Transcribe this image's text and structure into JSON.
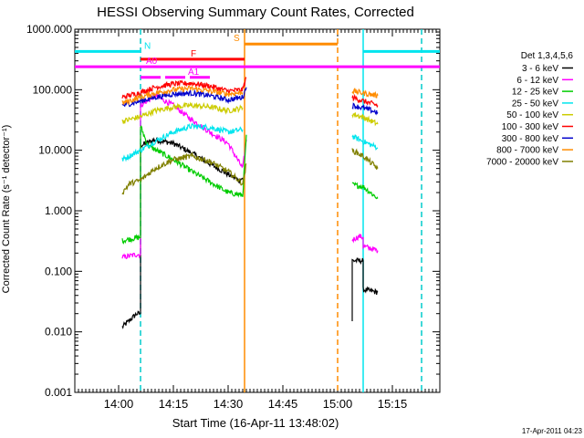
{
  "chart_data": {
    "type": "line",
    "title": "HESSI Observing Summary Count Rates, Corrected",
    "xlabel": "Start Time (16-Apr-11 13:48:02)",
    "ylabel": "Corrected Count Rate (s⁻¹ detector⁻¹)",
    "timestamp": "17-Apr-2011 04:23",
    "legend_title": "Det 1,3,4,5,6",
    "legend_placement": "right",
    "x_unit": "minutes",
    "xlim": [
      "13:48",
      "15:28"
    ],
    "ylog": true,
    "ylim": [
      0.001,
      1000
    ],
    "x_ticks": [
      "14:00",
      "14:15",
      "14:30",
      "14:45",
      "15:00",
      "15:15"
    ],
    "x_tick_values": [
      "14:00",
      "14:15",
      "14:30",
      "14:45",
      "15:00",
      "15:15"
    ],
    "y_tick_labels": [
      "1000.000",
      "100.000",
      "10.000",
      "1.000",
      "0.100",
      "0.010",
      "0.001"
    ],
    "y_tick_values": [
      1000,
      100,
      10,
      1,
      0.1,
      0.01,
      0.001
    ],
    "series": [
      {
        "name": "3 - 6 keV",
        "color": "#000000",
        "segments": [
          [
            [
              "14:01",
              0.012
            ],
            [
              "14:05",
              0.02
            ],
            [
              "14:06",
              0.02
            ],
            [
              "14:06",
              12
            ],
            [
              "14:10",
              15
            ],
            [
              "14:15",
              13
            ],
            [
              "14:20",
              9
            ],
            [
              "14:25",
              6
            ],
            [
              "14:30",
              4
            ],
            [
              "14:33",
              3.2
            ],
            [
              "14:34",
              3.5
            ]
          ],
          [
            [
              "15:04",
              0.015
            ],
            [
              "15:04",
              0.15
            ],
            [
              "15:07",
              0.15
            ],
            [
              "15:07",
              0.05
            ],
            [
              "15:11",
              0.045
            ]
          ]
        ]
      },
      {
        "name": "6 - 12 keV",
        "color": "#ff00ff",
        "segments": [
          [
            [
              "14:01",
              0.17
            ],
            [
              "14:05",
              0.19
            ],
            [
              "14:06",
              0.19
            ],
            [
              "14:06",
              55
            ],
            [
              "14:10",
              80
            ],
            [
              "14:15",
              55
            ],
            [
              "14:20",
              32
            ],
            [
              "14:25",
              20
            ],
            [
              "14:30",
              13
            ],
            [
              "14:34",
              5
            ],
            [
              "14:35",
              15
            ]
          ],
          [
            [
              "15:04",
              0.33
            ],
            [
              "15:06",
              0.38
            ],
            [
              "15:07",
              0.36
            ],
            [
              "15:07",
              0.26
            ],
            [
              "15:11",
              0.22
            ]
          ]
        ]
      },
      {
        "name": "12 - 25 keV",
        "color": "#00cc00",
        "segments": [
          [
            [
              "14:01",
              0.32
            ],
            [
              "14:05",
              0.36
            ],
            [
              "14:06",
              0.36
            ],
            [
              "14:06",
              25
            ],
            [
              "14:08",
              12
            ],
            [
              "14:15",
              7
            ],
            [
              "14:20",
              4.5
            ],
            [
              "14:25",
              3
            ],
            [
              "14:30",
              2
            ],
            [
              "14:34",
              1.8
            ],
            [
              "14:35",
              18
            ]
          ],
          [
            [
              "15:04",
              2.7
            ],
            [
              "15:07",
              2.5
            ],
            [
              "15:11",
              1.6
            ]
          ]
        ]
      },
      {
        "name": "25 - 50 keV",
        "color": "#00e5ee",
        "segments": [
          [
            [
              "14:01",
              7
            ],
            [
              "14:06",
              10
            ],
            [
              "14:10",
              14
            ],
            [
              "14:15",
              20
            ],
            [
              "14:20",
              25
            ],
            [
              "14:25",
              24
            ],
            [
              "14:30",
              20
            ],
            [
              "14:34",
              22
            ]
          ],
          [
            [
              "15:04",
              17
            ],
            [
              "15:07",
              14
            ],
            [
              "15:11",
              11
            ]
          ]
        ]
      },
      {
        "name": "50 - 100 keV",
        "color": "#cccc00",
        "segments": [
          [
            [
              "14:01",
              30
            ],
            [
              "14:06",
              36
            ],
            [
              "14:10",
              45
            ],
            [
              "14:15",
              52
            ],
            [
              "14:20",
              55
            ],
            [
              "14:25",
              52
            ],
            [
              "14:30",
              45
            ],
            [
              "14:34",
              50
            ]
          ],
          [
            [
              "15:04",
              40
            ],
            [
              "15:07",
              35
            ],
            [
              "15:11",
              27
            ]
          ]
        ]
      },
      {
        "name": "100 - 300 keV",
        "color": "#ff0000",
        "segments": [
          [
            [
              "14:01",
              75
            ],
            [
              "14:06",
              90
            ],
            [
              "14:10",
              110
            ],
            [
              "14:15",
              125
            ],
            [
              "14:20",
              128
            ],
            [
              "14:25",
              115
            ],
            [
              "14:30",
              95
            ],
            [
              "14:34",
              100
            ],
            [
              "14:35",
              160
            ]
          ],
          [
            [
              "15:04",
              75
            ],
            [
              "15:07",
              65
            ],
            [
              "15:11",
              55
            ]
          ]
        ]
      },
      {
        "name": "300 - 800 keV",
        "color": "#0000cc",
        "segments": [
          [
            [
              "14:01",
              55
            ],
            [
              "14:06",
              65
            ],
            [
              "14:10",
              75
            ],
            [
              "14:15",
              85
            ],
            [
              "14:20",
              88
            ],
            [
              "14:25",
              80
            ],
            [
              "14:30",
              68
            ],
            [
              "14:34",
              75
            ],
            [
              "14:35",
              110
            ]
          ],
          [
            [
              "15:04",
              55
            ],
            [
              "15:07",
              50
            ],
            [
              "15:11",
              42
            ]
          ]
        ]
      },
      {
        "name": "800 - 7000 keV",
        "color": "#ff8c00",
        "segments": [
          [
            [
              "14:01",
              60
            ],
            [
              "14:06",
              75
            ],
            [
              "14:10",
              88
            ],
            [
              "14:15",
              100
            ],
            [
              "14:20",
              105
            ],
            [
              "14:25",
              95
            ],
            [
              "14:30",
              85
            ],
            [
              "14:34",
              90
            ]
          ],
          [
            [
              "15:04",
              95
            ],
            [
              "15:07",
              88
            ],
            [
              "15:11",
              80
            ]
          ]
        ]
      },
      {
        "name": "7000 - 20000 keV",
        "color": "#808000",
        "segments": [
          [
            [
              "14:01",
              2
            ],
            [
              "14:03",
              2.8
            ],
            [
              "14:06",
              3.2
            ],
            [
              "14:10",
              5
            ],
            [
              "14:15",
              7
            ],
            [
              "14:20",
              8
            ],
            [
              "14:25",
              6.5
            ],
            [
              "14:30",
              4.5
            ],
            [
              "14:34",
              2.8
            ],
            [
              "14:35",
              6
            ]
          ],
          [
            [
              "15:04",
              10
            ],
            [
              "15:07",
              8
            ],
            [
              "15:11",
              5
            ]
          ]
        ]
      }
    ],
    "vlines": [
      {
        "x": "14:06",
        "color": "#00cccc",
        "style": "dashed"
      },
      {
        "x": "14:34.5",
        "color": "#ff8c00",
        "style": "solid"
      },
      {
        "x": "15:00",
        "color": "#ff8c00",
        "style": "dashed"
      },
      {
        "x": "15:07",
        "color": "#00e5ee",
        "style": "solid"
      },
      {
        "x": "15:23",
        "color": "#00cccc",
        "style": "dashed"
      }
    ],
    "flag_bars": [
      {
        "label": "N",
        "color": "#00e5ee",
        "y": 430,
        "segments": [
          [
            "13:48",
            "14:06"
          ],
          [
            "15:07",
            "15:28"
          ]
        ]
      },
      {
        "label": "S",
        "color": "#ff8c00",
        "y": 570,
        "segments": [
          [
            "14:34.5",
            "15:00"
          ]
        ]
      },
      {
        "label": "F",
        "color": "#ff0000",
        "y": 320,
        "segments": [
          [
            "14:06",
            "14:34.5"
          ]
        ]
      },
      {
        "label": "A0",
        "color": "#ff00ff",
        "y": 240,
        "segments": [
          [
            "13:48",
            "15:28"
          ]
        ]
      },
      {
        "label": "A1",
        "color": "#ff00ff",
        "y": 160,
        "segments": [
          [
            "14:06",
            "14:25"
          ]
        ]
      }
    ]
  }
}
